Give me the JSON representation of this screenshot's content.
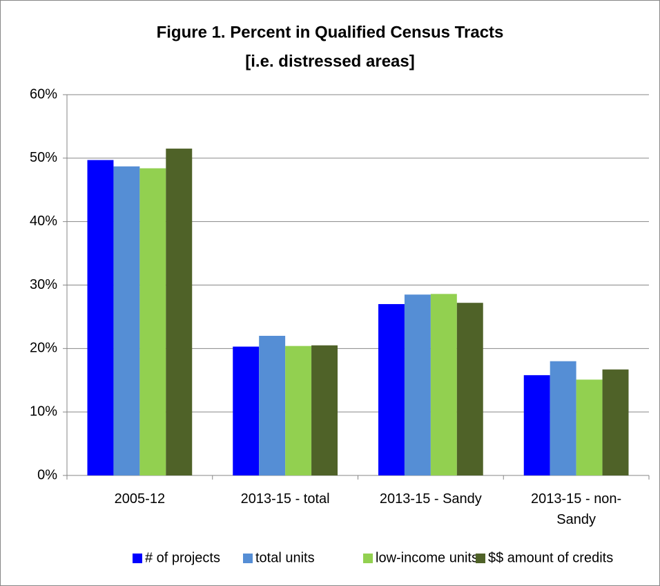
{
  "chart_data": {
    "type": "bar",
    "title": [
      "Figure 1. Percent in Qualified Census Tracts",
      "[i.e. distressed areas]"
    ],
    "categories": [
      "2005-12",
      "2013-15 - total",
      "2013-15 - Sandy",
      "2013-15 - non-Sandy"
    ],
    "series": [
      {
        "name": "# of projects",
        "color": "#0000ff",
        "values": [
          49.7,
          20.3,
          27.0,
          15.8
        ]
      },
      {
        "name": "total units",
        "color": "#558ed5",
        "values": [
          48.7,
          22.0,
          28.5,
          18.0
        ]
      },
      {
        "name": "low-income units",
        "color": "#92d050",
        "values": [
          48.4,
          20.4,
          28.6,
          15.1
        ]
      },
      {
        "name": "$$ amount of credits",
        "color": "#4f6228",
        "values": [
          51.5,
          20.5,
          27.2,
          16.7
        ]
      }
    ],
    "ylim": [
      0,
      60
    ],
    "yticks": [
      {
        "value": 0,
        "label": "0%"
      },
      {
        "value": 10,
        "label": "10%"
      },
      {
        "value": 20,
        "label": "20%"
      },
      {
        "value": 30,
        "label": "30%"
      },
      {
        "value": 40,
        "label": "40%"
      },
      {
        "value": 50,
        "label": "50%"
      },
      {
        "value": 60,
        "label": "60%"
      }
    ],
    "grid": true,
    "legend": "bottom"
  }
}
